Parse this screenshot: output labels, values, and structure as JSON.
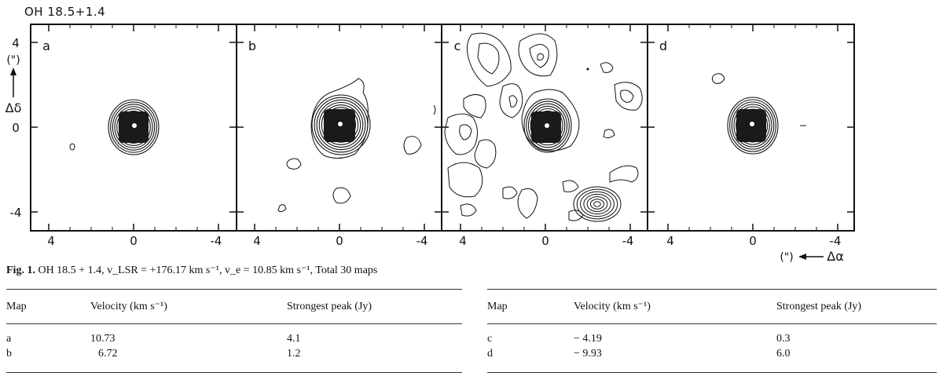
{
  "figure": {
    "source_label": "OH 18.5+1.4",
    "panels": [
      {
        "label": "a"
      },
      {
        "label": "b"
      },
      {
        "label": "c"
      },
      {
        "label": "d"
      }
    ],
    "ra_ticks": [
      "4",
      "0",
      "-4"
    ],
    "dec_ticks": [
      "4",
      "0",
      "-4"
    ],
    "dec_axis": {
      "unit": "(\")",
      "label": "Δδ"
    },
    "ra_axis": {
      "unit": "(\")",
      "label": "Δα"
    }
  },
  "caption": {
    "prefix": "Fig. 1.",
    "text": "OH 18.5 + 1.4, v_LSR = +176.17 km s⁻¹, v_e = 10.85 km s⁻¹, Total 30 maps"
  },
  "tables": [
    {
      "headers": [
        "Map",
        "Velocity (km s⁻¹)",
        "Strongest peak (Jy)"
      ],
      "rows": [
        [
          "a",
          "10.73",
          "4.1"
        ],
        [
          "b",
          "6.72",
          "1.2"
        ]
      ]
    },
    {
      "headers": [
        "Map",
        "Velocity (km s⁻¹)",
        "Strongest peak (Jy)"
      ],
      "rows": [
        [
          "c",
          "− 4.19",
          "0.3"
        ],
        [
          "d",
          "− 9.93",
          "6.0"
        ]
      ]
    }
  ]
}
